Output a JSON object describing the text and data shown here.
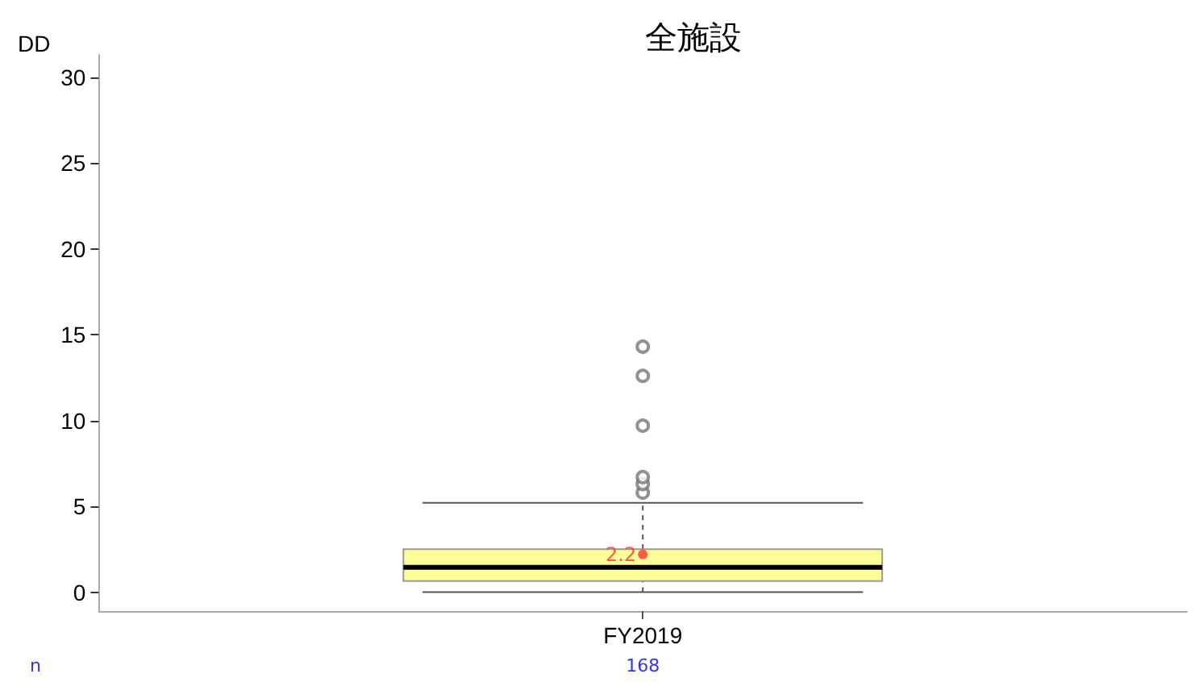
{
  "chart_data": {
    "type": "box",
    "title": "全施設",
    "ylabel": "DD",
    "categories": [
      "FY2019"
    ],
    "series": [
      {
        "color": "#ffff99",
        "boxes": [
          {
            "low": 0,
            "q1": 0.65,
            "median": 1.45,
            "q3": 2.5,
            "high": 5.2,
            "mean": 2.2,
            "outliers": [
              5.8,
              6.3,
              6.7,
              9.7,
              12.6,
              14.3
            ]
          }
        ]
      }
    ],
    "ylim": [
      -1.1,
      31.3
    ],
    "yticks": [
      0,
      5,
      10,
      15,
      20,
      25,
      30
    ],
    "grid": false,
    "annotations": [
      {
        "text": "2.2",
        "x": "FY2019",
        "y": 2.2
      },
      "n",
      "168"
    ]
  }
}
